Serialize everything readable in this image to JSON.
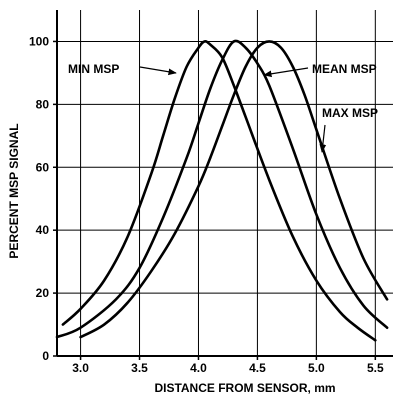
{
  "chart_data": {
    "type": "line",
    "xlabel": "DISTANCE FROM SENSOR, mm",
    "ylabel": "PERCENT MSP SIGNAL",
    "xlim": [
      2.8,
      5.65
    ],
    "ylim": [
      0,
      110
    ],
    "x_ticks": [
      3.0,
      3.5,
      4.0,
      4.5,
      5.0,
      5.5
    ],
    "x_tick_labels": [
      "3.0",
      "3.5",
      "4.0",
      "4.5",
      "5.0",
      "5.5"
    ],
    "y_ticks": [
      0,
      20,
      40,
      60,
      80,
      100
    ],
    "y_tick_labels": [
      "0",
      "20",
      "40",
      "60",
      "80",
      "100"
    ],
    "grid": true,
    "series": [
      {
        "name": "MIN MSP",
        "x": [
          2.85,
          3.0,
          3.2,
          3.4,
          3.6,
          3.7,
          3.8,
          3.9,
          4.0,
          4.05,
          4.1,
          4.2,
          4.3,
          4.4,
          4.6,
          4.8,
          5.0,
          5.2,
          5.35,
          5.5
        ],
        "y": [
          10,
          15,
          24,
          38,
          58,
          70,
          82,
          92,
          98,
          100,
          99,
          95,
          86,
          76,
          56,
          38,
          24,
          14,
          9,
          5
        ]
      },
      {
        "name": "MEAN MSP",
        "x": [
          2.8,
          3.0,
          3.3,
          3.5,
          3.7,
          3.9,
          4.0,
          4.1,
          4.2,
          4.3,
          4.4,
          4.5,
          4.6,
          4.8,
          5.0,
          5.2,
          5.4,
          5.6
        ],
        "y": [
          6,
          9,
          18,
          28,
          44,
          63,
          74,
          85,
          94,
          100,
          98,
          93,
          86,
          66,
          45,
          28,
          16,
          9
        ]
      },
      {
        "name": "MAX MSP",
        "x": [
          3.0,
          3.2,
          3.4,
          3.6,
          3.8,
          4.0,
          4.1,
          4.2,
          4.3,
          4.4,
          4.5,
          4.6,
          4.7,
          4.8,
          4.9,
          5.0,
          5.2,
          5.4,
          5.6
        ],
        "y": [
          6,
          10,
          17,
          27,
          39,
          54,
          63,
          73,
          83,
          92,
          98,
          100,
          98,
          92,
          83,
          72,
          50,
          31,
          18
        ]
      }
    ],
    "annotations": [
      {
        "text": "MIN MSP",
        "series": "MIN MSP"
      },
      {
        "text": "MEAN MSP",
        "series": "MEAN MSP"
      },
      {
        "text": "MAX MSP",
        "series": "MAX MSP"
      }
    ]
  }
}
